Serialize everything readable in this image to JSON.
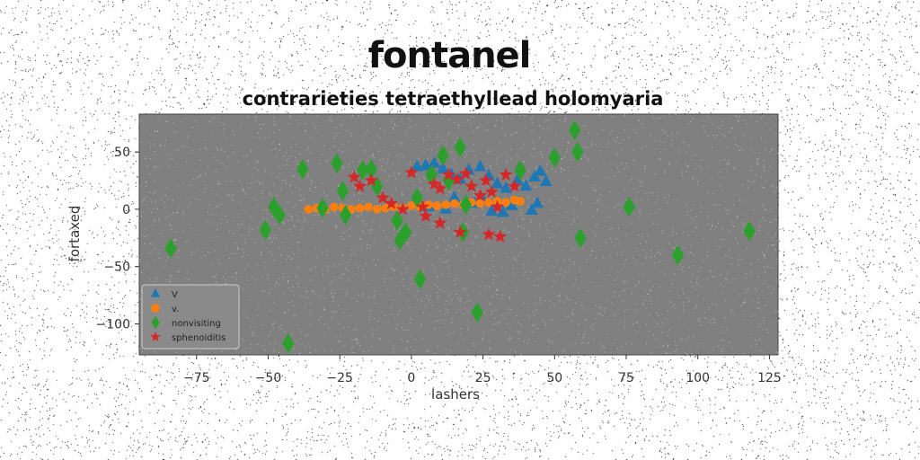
{
  "chart_data": {
    "type": "scatter",
    "suptitle": "fontanel",
    "title": "contrarieties tetraethyllead holomyaria",
    "xlabel": "lashers",
    "ylabel": "fortaxed",
    "xlim": [
      -95,
      128
    ],
    "ylim": [
      -127,
      83
    ],
    "xticks": [
      -75,
      -50,
      -25,
      0,
      25,
      50,
      75,
      100,
      125
    ],
    "yticks": [
      50,
      0,
      -50,
      -100
    ],
    "grid": false,
    "legend_position": "lower-left",
    "plot_background": "#808080",
    "series": [
      {
        "name": "V",
        "marker": "triangle",
        "color": "#1f77b4",
        "x": [
          2,
          5,
          8,
          11,
          14,
          17,
          20,
          24,
          27,
          30,
          33,
          37,
          40,
          43,
          45,
          47,
          6,
          12,
          22,
          28,
          35,
          42,
          15,
          25,
          32,
          44
        ],
        "y": [
          37,
          38,
          40,
          35,
          30,
          26,
          34,
          37,
          29,
          22,
          18,
          25,
          20,
          28,
          33,
          24,
          2,
          0,
          5,
          -2,
          3,
          -1,
          10,
          8,
          -3,
          5
        ]
      },
      {
        "name": "v.",
        "marker": "circle",
        "color": "#ff7f0e",
        "x": [
          -36,
          -33,
          -30,
          -27,
          -24,
          -21,
          -18,
          -15,
          -12,
          -9,
          -6,
          -3,
          0,
          3,
          6,
          9,
          12,
          15,
          18,
          21,
          24,
          27,
          30,
          33,
          36,
          38
        ],
        "y": [
          0,
          1,
          0,
          2,
          1,
          0,
          1,
          2,
          0,
          1,
          2,
          1,
          3,
          2,
          4,
          3,
          4,
          5,
          4,
          6,
          5,
          6,
          7,
          6,
          8,
          7
        ]
      },
      {
        "name": "nonvisiting",
        "marker": "diamond",
        "color": "#2ca02c",
        "x": [
          -84,
          -51,
          -48,
          -46,
          -38,
          -31,
          -26,
          -24,
          -23,
          -17,
          -14,
          -12,
          -5,
          -4,
          -2,
          3,
          7,
          11,
          13,
          17,
          18,
          19,
          38,
          50,
          57,
          58,
          59,
          76,
          93,
          118,
          2,
          -43,
          23
        ],
        "y": [
          -34,
          -18,
          2,
          -5,
          35,
          1,
          40,
          16,
          -5,
          34,
          35,
          20,
          -10,
          -27,
          -20,
          -61,
          30,
          47,
          25,
          54,
          -20,
          4,
          34,
          45,
          69,
          50,
          -25,
          2,
          -40,
          -19,
          10,
          -117,
          -90
        ]
      },
      {
        "name": "sphenoiditis",
        "marker": "star",
        "color": "#d62728",
        "x": [
          -20,
          -18,
          -14,
          -10,
          -7,
          -3,
          0,
          4,
          8,
          10,
          13,
          16,
          19,
          21,
          24,
          26,
          28,
          30,
          33,
          36,
          10,
          17,
          27,
          31,
          5
        ],
        "y": [
          28,
          20,
          25,
          10,
          5,
          0,
          32,
          2,
          22,
          18,
          30,
          26,
          31,
          20,
          12,
          25,
          15,
          2,
          30,
          20,
          -12,
          -20,
          -22,
          -24,
          -6
        ]
      }
    ]
  }
}
